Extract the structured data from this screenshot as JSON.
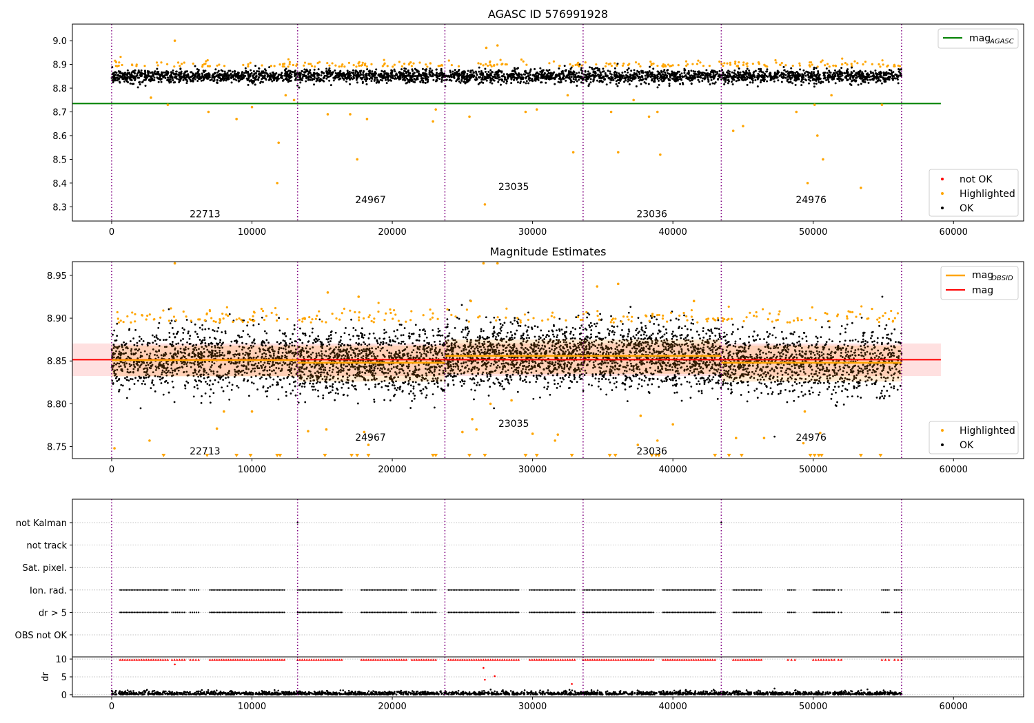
{
  "chart_data": [
    {
      "type": "scatter",
      "title": "AGASC ID 576991928",
      "xlim": [
        -2800,
        65000
      ],
      "ylim": [
        8.24,
        9.07
      ],
      "x_ticks": [
        0,
        10000,
        20000,
        30000,
        40000,
        50000,
        60000
      ],
      "x_tick_labels": [
        "0",
        "10000",
        "20000",
        "30000",
        "40000",
        "50000",
        "60000"
      ],
      "y_ticks": [
        8.3,
        8.4,
        8.5,
        8.6,
        8.7,
        8.8,
        8.9,
        9.0
      ],
      "y_tick_labels": [
        "8.3",
        "8.4",
        "8.5",
        "8.6",
        "8.7",
        "8.8",
        "8.9",
        "9.0"
      ],
      "obs_boundaries": [
        0,
        13250,
        23750,
        33600,
        43450,
        56300
      ],
      "obs_labels": [
        {
          "text": "22713",
          "x": 6650,
          "y": 8.27
        },
        {
          "text": "24967",
          "x": 18450,
          "y": 8.33
        },
        {
          "text": "23035",
          "x": 28650,
          "y": 8.385
        },
        {
          "text": "23036",
          "x": 38500,
          "y": 8.27
        },
        {
          "text": "24976",
          "x": 49850,
          "y": 8.33
        }
      ],
      "mag_agasc": {
        "value": 8.735,
        "x_range": [
          -2800,
          59100
        ]
      },
      "ok_band": {
        "center": 8.85,
        "spread": 0.035
      },
      "highlighted_outliers": [
        [
          4500,
          9.0
        ],
        [
          11900,
          8.57
        ],
        [
          11800,
          8.4
        ],
        [
          17500,
          8.5
        ],
        [
          26600,
          8.31
        ],
        [
          27500,
          8.98
        ],
        [
          26700,
          8.97
        ],
        [
          32900,
          8.53
        ],
        [
          36100,
          8.53
        ],
        [
          39100,
          8.52
        ],
        [
          50300,
          8.6
        ],
        [
          50700,
          8.5
        ],
        [
          49600,
          8.4
        ],
        [
          53400,
          8.38
        ],
        [
          8900,
          8.67
        ],
        [
          2800,
          8.76
        ],
        [
          4000,
          8.73
        ],
        [
          6900,
          8.7
        ],
        [
          10000,
          8.72
        ],
        [
          15400,
          8.69
        ],
        [
          17000,
          8.69
        ],
        [
          22900,
          8.66
        ],
        [
          23100,
          8.71
        ],
        [
          25500,
          8.68
        ],
        [
          29500,
          8.7
        ],
        [
          30300,
          8.71
        ],
        [
          35600,
          8.7
        ],
        [
          38300,
          8.68
        ],
        [
          38900,
          8.7
        ],
        [
          44300,
          8.62
        ],
        [
          45000,
          8.64
        ],
        [
          48800,
          8.7
        ],
        [
          50100,
          8.73
        ],
        [
          51300,
          8.77
        ],
        [
          54900,
          8.73
        ],
        [
          12400,
          8.77
        ],
        [
          13000,
          8.75
        ],
        [
          18200,
          8.67
        ],
        [
          32500,
          8.77
        ],
        [
          37200,
          8.75
        ]
      ],
      "legend": [
        {
          "label": "mag",
          "sub": "AGASC",
          "color": "#008000"
        }
      ],
      "legend2": [
        {
          "label": "not OK",
          "color": "#ff0000"
        },
        {
          "label": "Highlighted",
          "color": "#ffa500"
        },
        {
          "label": "OK",
          "color": "#000000"
        }
      ]
    },
    {
      "type": "scatter",
      "title": "Magnitude Estimates",
      "xlim": [
        -2800,
        65000
      ],
      "ylim": [
        8.736,
        8.966
      ],
      "x_ticks": [
        0,
        10000,
        20000,
        30000,
        40000,
        50000,
        60000
      ],
      "x_tick_labels": [
        "0",
        "10000",
        "20000",
        "30000",
        "40000",
        "50000",
        "60000"
      ],
      "y_ticks": [
        8.75,
        8.8,
        8.85,
        8.9,
        8.95
      ],
      "y_tick_labels": [
        "8.75",
        "8.80",
        "8.85",
        "8.90",
        "8.95"
      ],
      "obs_boundaries": [
        0,
        13250,
        23750,
        33600,
        43450,
        56300
      ],
      "obs_labels": [
        {
          "text": "22713",
          "x": 6650,
          "y": 8.745
        },
        {
          "text": "24967",
          "x": 18450,
          "y": 8.761
        },
        {
          "text": "23035",
          "x": 28650,
          "y": 8.777
        },
        {
          "text": "23036",
          "x": 38500,
          "y": 8.745
        },
        {
          "text": "24976",
          "x": 49850,
          "y": 8.761
        }
      ],
      "mag": {
        "value": 8.8515,
        "band": [
          8.8325,
          8.8705
        ],
        "x_range": [
          -2800,
          59100
        ]
      },
      "mag_obsid": [
        {
          "x0": 0,
          "x1": 13250,
          "mag": 8.851,
          "band": [
            8.832,
            8.868
          ]
        },
        {
          "x0": 13250,
          "x1": 23750,
          "mag": 8.848,
          "band": [
            8.826,
            8.868
          ]
        },
        {
          "x0": 23750,
          "x1": 33600,
          "mag": 8.856,
          "band": [
            8.835,
            8.875
          ]
        },
        {
          "x0": 33600,
          "x1": 43450,
          "mag": 8.856,
          "band": [
            8.835,
            8.875
          ]
        },
        {
          "x0": 43450,
          "x1": 56300,
          "mag": 8.848,
          "band": [
            8.826,
            8.868
          ]
        }
      ],
      "down_markers_x": [
        3700,
        6800,
        8900,
        9900,
        11800,
        12000,
        15200,
        17100,
        17500,
        18300,
        22900,
        23100,
        25500,
        26600,
        29500,
        30300,
        32800,
        35500,
        35900,
        38500,
        38800,
        39000,
        43000,
        44000,
        44900,
        49800,
        50100,
        50400,
        50600,
        53400,
        54800
      ],
      "highlighted_outliers": [
        [
          200,
          8.748
        ],
        [
          4500,
          8.964
        ],
        [
          26500,
          8.964
        ],
        [
          27500,
          8.964
        ],
        [
          2700,
          8.757
        ],
        [
          7500,
          8.771
        ],
        [
          8000,
          8.791
        ],
        [
          10000,
          8.791
        ],
        [
          14000,
          8.768
        ],
        [
          15300,
          8.77
        ],
        [
          18000,
          8.767
        ],
        [
          18300,
          8.752
        ],
        [
          25000,
          8.767
        ],
        [
          25700,
          8.782
        ],
        [
          26000,
          8.77
        ],
        [
          27000,
          8.8
        ],
        [
          28500,
          8.804
        ],
        [
          30000,
          8.765
        ],
        [
          31800,
          8.764
        ],
        [
          31600,
          8.757
        ],
        [
          37500,
          8.752
        ],
        [
          37700,
          8.786
        ],
        [
          38900,
          8.757
        ],
        [
          40000,
          8.776
        ],
        [
          44500,
          8.76
        ],
        [
          46500,
          8.76
        ],
        [
          49400,
          8.791
        ],
        [
          49300,
          8.754
        ],
        [
          50500,
          8.766
        ],
        [
          36100,
          8.94
        ],
        [
          34600,
          8.937
        ],
        [
          25600,
          8.92
        ],
        [
          15400,
          8.93
        ],
        [
          17600,
          8.925
        ],
        [
          41500,
          8.92
        ]
      ],
      "legend": [
        {
          "label": "mag",
          "sub": "OBSID",
          "color": "#ffa500"
        },
        {
          "label": "mag",
          "sub": "",
          "color": "#ff0000"
        }
      ],
      "legend2": [
        {
          "label": "Highlighted",
          "color": "#ffa500"
        },
        {
          "label": "OK",
          "color": "#000000"
        }
      ]
    },
    {
      "type": "scatter",
      "title": "",
      "xlim": [
        -2800,
        65000
      ],
      "categories": [
        "OBS not OK",
        "dr > 5",
        "Ion. rad.",
        "Sat. pixel.",
        "not track",
        "not Kalman"
      ],
      "category_hits": {
        "Ion. rad.": [
          [
            600,
            4000
          ],
          [
            4300,
            5200
          ],
          [
            5600,
            6200
          ],
          [
            7000,
            12300
          ],
          [
            13250,
            16400
          ],
          [
            17800,
            21000
          ],
          [
            21400,
            23100
          ],
          [
            24000,
            29000
          ],
          [
            29800,
            33000
          ],
          [
            33600,
            38600
          ],
          [
            39300,
            43000
          ],
          [
            44300,
            46300
          ],
          [
            48200,
            48700
          ],
          [
            50000,
            51500
          ],
          [
            51800,
            52000
          ],
          [
            54900,
            55400
          ],
          [
            55800,
            56300
          ]
        ],
        "dr > 5": [
          [
            600,
            4000
          ],
          [
            4300,
            5200
          ],
          [
            5600,
            6200
          ],
          [
            7000,
            12300
          ],
          [
            13250,
            16400
          ],
          [
            17800,
            21000
          ],
          [
            21400,
            23100
          ],
          [
            24000,
            29000
          ],
          [
            29800,
            33000
          ],
          [
            33600,
            38600
          ],
          [
            39300,
            43000
          ],
          [
            44300,
            46300
          ],
          [
            48200,
            48700
          ],
          [
            50000,
            51500
          ],
          [
            51800,
            52000
          ],
          [
            54900,
            55400
          ],
          [
            55800,
            56300
          ]
        ]
      },
      "not_kalman_points": [
        13250,
        43450
      ],
      "obs_boundaries": [
        0,
        13250,
        23750,
        33600,
        43450,
        56300
      ]
    },
    {
      "type": "scatter",
      "title": "",
      "xlim": [
        -2800,
        65000
      ],
      "ylim": [
        -0.6,
        10.6
      ],
      "x_ticks": [
        0,
        10000,
        20000,
        30000,
        40000,
        50000,
        60000
      ],
      "x_tick_labels": [
        "0",
        "10000",
        "20000",
        "30000",
        "40000",
        "50000",
        "60000"
      ],
      "y_ticks": [
        0,
        5,
        10
      ],
      "y_tick_labels": [
        "0",
        "5",
        "10"
      ],
      "ylabel": "dr",
      "capped_value": 9.8,
      "red_outliers": [
        [
          4500,
          8.5
        ],
        [
          26500,
          7.5
        ],
        [
          26600,
          4.2
        ],
        [
          27300,
          5.2
        ],
        [
          32800,
          3.0
        ]
      ],
      "obs_boundaries": [
        0,
        13250,
        23750,
        33600,
        43450,
        56300
      ]
    }
  ]
}
